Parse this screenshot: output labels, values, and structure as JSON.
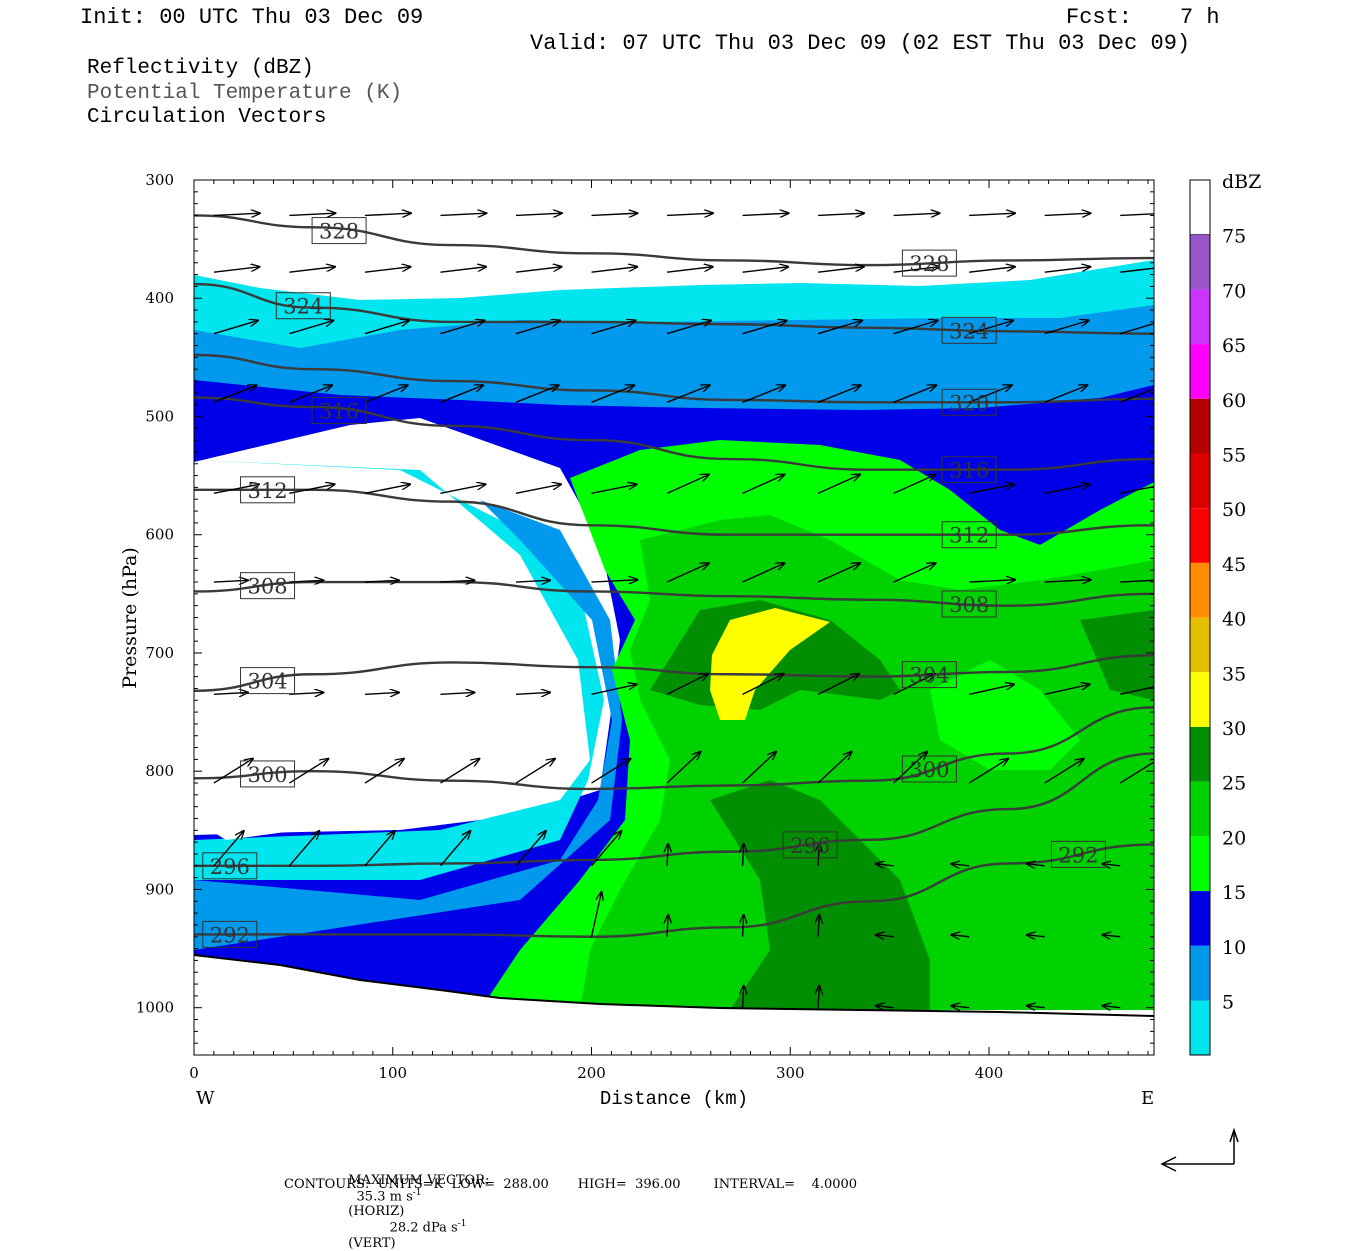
{
  "header": {
    "init": "Init: 00 UTC Thu 03 Dec 09",
    "fcst_label": "Fcst:",
    "fcst_value": "7 h",
    "valid": "Valid: 07 UTC Thu 03 Dec 09 (02 EST Thu 03 Dec 09)"
  },
  "fields": {
    "reflectivity": "Reflectivity (dBZ)",
    "theta": "Potential Temperature (K)",
    "circulation": "Circulation Vectors"
  },
  "chart_data": {
    "type": "cross-section",
    "xlabel": "Distance (km)",
    "ylabel": "Pressure (hPa)",
    "xlim": [
      0,
      483
    ],
    "ylim": [
      1040,
      300
    ],
    "x_ticks": [
      "0",
      "100",
      "200",
      "300",
      "400"
    ],
    "y_ticks": [
      "300",
      "400",
      "500",
      "600",
      "700",
      "800",
      "900",
      "1000"
    ],
    "x_ends": {
      "left": "W",
      "right": "E"
    },
    "colorbar": {
      "unit": "dBZ",
      "levels": [
        "5",
        "10",
        "15",
        "20",
        "25",
        "30",
        "35",
        "40",
        "45",
        "50",
        "55",
        "60",
        "65",
        "70",
        "75"
      ],
      "colors": [
        "#00e5ee",
        "#0099ee",
        "#0000e8",
        "#00ff00",
        "#00d200",
        "#008f00",
        "#ffff00",
        "#e6be00",
        "#ff8c00",
        "#ff0000",
        "#dc0000",
        "#b40000",
        "#ff00ff",
        "#cc33ff",
        "#9955cc"
      ]
    },
    "theta_contours": {
      "levels": [
        {
          "label": "328",
          "x": [
            0,
            60,
            130,
            200,
            270,
            340,
            410,
            483
          ],
          "p": [
            330,
            340,
            355,
            362,
            368,
            372,
            368,
            366
          ]
        },
        {
          "label": "324",
          "x": [
            0,
            60,
            130,
            200,
            270,
            340,
            410,
            483
          ],
          "p": [
            388,
            408,
            420,
            420,
            422,
            425,
            428,
            430
          ]
        },
        {
          "label": "320",
          "x": [
            0,
            60,
            130,
            200,
            270,
            340,
            410,
            483
          ],
          "p": [
            448,
            460,
            470,
            478,
            486,
            488,
            488,
            485
          ]
        },
        {
          "label": "316",
          "x": [
            0,
            60,
            130,
            200,
            270,
            340,
            410,
            483
          ],
          "p": [
            484,
            492,
            508,
            520,
            536,
            545,
            545,
            536
          ]
        },
        {
          "label": "312",
          "x": [
            0,
            60,
            130,
            200,
            270,
            340,
            410,
            483
          ],
          "p": [
            562,
            562,
            572,
            592,
            600,
            600,
            600,
            592
          ]
        },
        {
          "label": "308",
          "x": [
            0,
            60,
            130,
            200,
            270,
            340,
            410,
            483
          ],
          "p": [
            648,
            640,
            640,
            648,
            652,
            655,
            660,
            650
          ]
        },
        {
          "label": "304",
          "x": [
            0,
            60,
            130,
            200,
            270,
            340,
            410,
            483
          ],
          "p": [
            732,
            718,
            708,
            712,
            718,
            720,
            716,
            702
          ]
        },
        {
          "label": "300",
          "x": [
            0,
            60,
            130,
            200,
            270,
            340,
            410,
            483
          ],
          "p": [
            806,
            800,
            808,
            815,
            812,
            808,
            785,
            746
          ]
        },
        {
          "label": "296",
          "x": [
            0,
            60,
            130,
            200,
            270,
            340,
            410,
            483
          ],
          "p": [
            880,
            880,
            878,
            875,
            868,
            858,
            832,
            785
          ]
        },
        {
          "label": "292",
          "x": [
            0,
            60,
            130,
            200,
            270,
            340,
            410,
            483
          ],
          "p": [
            938,
            938,
            938,
            940,
            932,
            910,
            878,
            862
          ]
        }
      ]
    },
    "max_vector": {
      "label": "MAXIMUM VECTOR:",
      "horiz_value": "35.3 m s",
      "horiz_tag": "(HORIZ)",
      "vert_value": "28.2 dPa s",
      "vert_tag": "(VERT)",
      "exponent": "-1"
    },
    "contours_info": {
      "text": "CONTOURS:  UNITS=K  LOW=  288.00       HIGH=  396.00        INTERVAL=    4.0000"
    }
  }
}
